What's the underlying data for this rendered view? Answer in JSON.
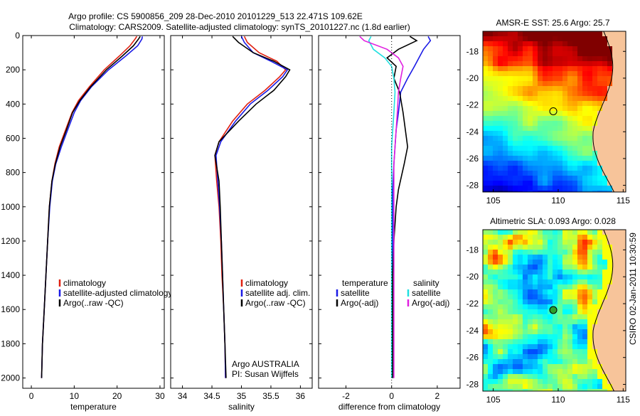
{
  "header": {
    "line1": "Argo profile: CS 5900856_209 28-Dec-2010 20101229_513 22.471S 109.62E",
    "line2": "Climatology: CARS2009. Satellite-adjusted climatology: synTS_20101227.nc (1.8d earlier)"
  },
  "side_label": "CSIRO 02-Jan-2011 10:30:59",
  "colors": {
    "climatology": "#e02010",
    "satellite": "#1a1ae6",
    "argo": "#000000",
    "satellite_salinity": "#20e0e0",
    "argo_adj_salinity": "#e020e0"
  },
  "chart_data": [
    {
      "type": "line",
      "name": "temperature-profile",
      "xlabel": "temperature",
      "ylabel": "",
      "xlim": [
        -2,
        31
      ],
      "ylim": [
        2060,
        0
      ],
      "y_inverted": true,
      "xticks": [
        0,
        10,
        20,
        30
      ],
      "yticks": [
        0,
        200,
        400,
        600,
        800,
        1000,
        1200,
        1400,
        1600,
        1800,
        2000
      ],
      "legend": {
        "placement": "lower-right",
        "entries": [
          "climatology",
          "satellite-adjusted climatology",
          "Argo(..raw -QC)"
        ]
      },
      "series": [
        {
          "name": "climatology",
          "color_key": "climatology",
          "x": [
            24.6,
            24.2,
            23.0,
            20.5,
            17.0,
            13.5,
            11.0,
            9.5,
            8.0,
            6.5,
            5.5,
            4.8,
            4.2,
            3.8,
            3.4,
            3.0,
            2.6,
            2.4
          ],
          "y": [
            5,
            20,
            60,
            120,
            200,
            300,
            380,
            450,
            550,
            650,
            750,
            850,
            1000,
            1200,
            1400,
            1600,
            1800,
            2000
          ]
        },
        {
          "name": "satellite-adjusted climatology",
          "color_key": "satellite",
          "x": [
            25.9,
            25.8,
            24.8,
            22.0,
            18.0,
            14.0,
            11.5,
            10.0,
            8.5,
            7.0,
            5.7,
            4.9,
            4.3,
            3.8,
            3.4,
            3.0,
            2.6,
            2.4
          ],
          "y": [
            5,
            20,
            60,
            120,
            200,
            300,
            380,
            450,
            550,
            650,
            750,
            850,
            1000,
            1200,
            1400,
            1600,
            1800,
            2000
          ]
        },
        {
          "name": "Argo(..raw -QC)",
          "color_key": "argo",
          "x": [
            25.4,
            25.0,
            23.8,
            21.2,
            17.5,
            13.8,
            11.3,
            9.6,
            8.2,
            6.7,
            5.6,
            4.8,
            4.2,
            3.8,
            3.4,
            3.0,
            2.6,
            2.4
          ],
          "y": [
            5,
            20,
            60,
            120,
            200,
            300,
            380,
            450,
            550,
            650,
            750,
            850,
            1000,
            1200,
            1400,
            1600,
            1800,
            2000
          ]
        }
      ]
    },
    {
      "type": "line",
      "name": "salinity-profile",
      "xlabel": "salinity",
      "ylabel": "",
      "xlim": [
        33.8,
        36.2
      ],
      "ylim": [
        2060,
        0
      ],
      "y_inverted": true,
      "xticks": [
        34,
        34.5,
        35,
        35.5,
        36
      ],
      "legend": {
        "placement": "lower-right",
        "entries": [
          "climatology",
          "satellite adj. clim.",
          "Argo(..raw -QC)"
        ]
      },
      "annotations": [
        "Argo AUSTRALIA",
        "PI: Susan Wijffels"
      ],
      "series": [
        {
          "name": "climatology",
          "color_key": "climatology",
          "x": [
            35.05,
            35.1,
            35.3,
            35.6,
            35.75,
            35.65,
            35.4,
            35.1,
            34.85,
            34.62,
            34.55,
            34.58,
            34.62,
            34.65,
            34.67,
            34.7,
            34.72,
            34.73
          ],
          "y": [
            5,
            40,
            100,
            150,
            200,
            240,
            320,
            400,
            500,
            620,
            700,
            850,
            1000,
            1200,
            1400,
            1600,
            1800,
            2000
          ]
        },
        {
          "name": "satellite adj. clim.",
          "color_key": "satellite",
          "x": [
            35.0,
            35.05,
            35.2,
            35.5,
            35.78,
            35.7,
            35.45,
            35.15,
            34.9,
            34.65,
            34.57,
            34.6,
            34.63,
            34.66,
            34.68,
            34.7,
            34.72,
            34.73
          ],
          "y": [
            5,
            40,
            100,
            150,
            200,
            240,
            320,
            400,
            500,
            620,
            700,
            850,
            1000,
            1200,
            1400,
            1600,
            1800,
            2000
          ]
        },
        {
          "name": "Argo(..raw -QC)",
          "color_key": "argo",
          "x": [
            34.85,
            34.95,
            35.2,
            35.55,
            35.82,
            35.75,
            35.55,
            35.25,
            34.95,
            34.62,
            34.55,
            34.62,
            34.64,
            34.66,
            34.68,
            34.7,
            34.72,
            34.74
          ],
          "y": [
            5,
            40,
            100,
            150,
            200,
            240,
            320,
            400,
            500,
            620,
            700,
            850,
            1000,
            1200,
            1400,
            1600,
            1800,
            2000
          ]
        }
      ]
    },
    {
      "type": "line",
      "name": "difference-profile",
      "xlabel": "difference from climatology",
      "ylabel": "",
      "xlim": [
        -3.2,
        3.0
      ],
      "ylim": [
        2060,
        0
      ],
      "y_inverted": true,
      "xticks": [
        -2,
        0,
        2
      ],
      "legend": {
        "placement": "lower",
        "entries": [
          "temperature",
          "satellite",
          "Argo(-adj)",
          "salinity",
          "satellite",
          "Argo(-adj)"
        ]
      },
      "series": [
        {
          "name": "temperature satellite",
          "color_key": "satellite",
          "x": [
            1.6,
            1.7,
            1.4,
            1.2,
            1.0,
            0.7,
            0.4,
            0.3,
            0.2,
            0.15,
            0.1,
            0.05,
            0.05,
            0.05,
            0.05,
            0.05,
            0.05,
            0.05
          ],
          "y": [
            5,
            30,
            80,
            130,
            180,
            250,
            330,
            450,
            550,
            650,
            750,
            900,
            1000,
            1200,
            1400,
            1600,
            1800,
            2000
          ]
        },
        {
          "name": "temperature Argo(-adj)",
          "color_key": "argo",
          "x": [
            0.8,
            1.1,
            0.3,
            -0.2,
            0.2,
            0.1,
            0.35,
            0.5,
            0.6,
            0.7,
            0.55,
            0.3,
            0.2,
            0.1,
            0.05,
            0.05,
            0.05,
            0.05
          ],
          "y": [
            5,
            30,
            80,
            130,
            180,
            250,
            330,
            450,
            550,
            650,
            750,
            900,
            1000,
            1200,
            1400,
            1600,
            1800,
            2000
          ]
        },
        {
          "name": "salinity satellite",
          "color_key": "satellite_salinity",
          "x": [
            -0.9,
            -1.0,
            -0.8,
            -0.3,
            0.0,
            0.1,
            0.15,
            0.1,
            0.05,
            0.0,
            0.0,
            0.0,
            0.0,
            0.0,
            0.0,
            0.0,
            0.0,
            0.0
          ],
          "y": [
            5,
            30,
            80,
            130,
            180,
            250,
            330,
            450,
            550,
            650,
            750,
            900,
            1000,
            1200,
            1400,
            1600,
            1800,
            2000
          ]
        },
        {
          "name": "salinity Argo(-adj)",
          "color_key": "argo_adj_salinity",
          "x": [
            -1.4,
            -1.2,
            -0.2,
            0.3,
            0.5,
            0.4,
            0.3,
            0.25,
            0.2,
            0.15,
            0.1,
            0.1,
            0.1,
            0.1,
            0.1,
            0.1,
            0.1,
            0.1
          ],
          "y": [
            5,
            30,
            80,
            130,
            180,
            250,
            330,
            450,
            550,
            650,
            750,
            900,
            1000,
            1200,
            1400,
            1600,
            1800,
            2000
          ]
        }
      ]
    },
    {
      "type": "heatmap",
      "name": "sst-map",
      "title": "AMSR-E SST: 25.6 Argo: 25.7",
      "xlim": [
        104.2,
        115.2
      ],
      "ylim": [
        -28.5,
        -16.5
      ],
      "xticks": [
        105,
        110,
        115
      ],
      "yticks": [
        -18,
        -20,
        -22,
        -24,
        -26,
        -28
      ],
      "marker": {
        "lon": 109.62,
        "lat": -22.471,
        "filled": false
      }
    },
    {
      "type": "heatmap",
      "name": "sla-map",
      "title": "Altimetric SLA: 0.093 Argo: 0.028",
      "xlim": [
        104.2,
        115.2
      ],
      "ylim": [
        -28.5,
        -16.5
      ],
      "xticks": [
        105,
        110,
        115
      ],
      "yticks": [
        -18,
        -20,
        -22,
        -24,
        -26,
        -28
      ],
      "marker": {
        "lon": 109.62,
        "lat": -22.471,
        "filled": true
      }
    }
  ]
}
